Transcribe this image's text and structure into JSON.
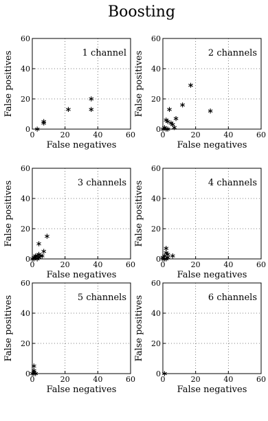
{
  "figure": {
    "title": "Boosting"
  },
  "chart_data": [
    {
      "type": "scatter",
      "label": "1 channel",
      "xlabel": "False negatives",
      "ylabel": "False positives",
      "xlim": [
        0,
        60
      ],
      "ylim": [
        0,
        60
      ],
      "xticks": [
        0,
        20,
        40,
        60
      ],
      "yticks": [
        0,
        20,
        40,
        60
      ],
      "grid": true,
      "points": [
        [
          3,
          0
        ],
        [
          7,
          4
        ],
        [
          7,
          5
        ],
        [
          22,
          13
        ],
        [
          36,
          13
        ],
        [
          36,
          20
        ]
      ]
    },
    {
      "type": "scatter",
      "label": "2 channels",
      "xlabel": "False negatives",
      "ylabel": "False positives",
      "xlim": [
        0,
        60
      ],
      "ylim": [
        0,
        60
      ],
      "xticks": [
        0,
        20,
        40,
        60
      ],
      "yticks": [
        0,
        20,
        40,
        60
      ],
      "grid": true,
      "points": [
        [
          0,
          0
        ],
        [
          1,
          1
        ],
        [
          2,
          0
        ],
        [
          3,
          0
        ],
        [
          2,
          6
        ],
        [
          3,
          5
        ],
        [
          4,
          13
        ],
        [
          5,
          4
        ],
        [
          6,
          3
        ],
        [
          7,
          1
        ],
        [
          8,
          7
        ],
        [
          12,
          16
        ],
        [
          17,
          29
        ],
        [
          29,
          12
        ]
      ]
    },
    {
      "type": "scatter",
      "label": "3 channels",
      "xlabel": "False negatives",
      "ylabel": "False positives",
      "xlim": [
        0,
        60
      ],
      "ylim": [
        0,
        60
      ],
      "xticks": [
        0,
        20,
        40,
        60
      ],
      "yticks": [
        0,
        20,
        40,
        60
      ],
      "grid": true,
      "points": [
        [
          0,
          0
        ],
        [
          1,
          0
        ],
        [
          1,
          1
        ],
        [
          2,
          1
        ],
        [
          2,
          2
        ],
        [
          3,
          0
        ],
        [
          3,
          2
        ],
        [
          4,
          3
        ],
        [
          4,
          1
        ],
        [
          5,
          2
        ],
        [
          4,
          10
        ],
        [
          6,
          2
        ],
        [
          7,
          5
        ],
        [
          9,
          15
        ]
      ]
    },
    {
      "type": "scatter",
      "label": "4 channels",
      "xlabel": "False negatives",
      "ylabel": "False positives",
      "xlim": [
        0,
        60
      ],
      "ylim": [
        0,
        60
      ],
      "xticks": [
        0,
        20,
        40,
        60
      ],
      "yticks": [
        0,
        20,
        40,
        60
      ],
      "grid": true,
      "points": [
        [
          0,
          0
        ],
        [
          0,
          1
        ],
        [
          1,
          0
        ],
        [
          1,
          2
        ],
        [
          2,
          0
        ],
        [
          2,
          4
        ],
        [
          2,
          7
        ],
        [
          3,
          1
        ],
        [
          3,
          3
        ],
        [
          6,
          2
        ]
      ]
    },
    {
      "type": "scatter",
      "label": "5 channels",
      "xlabel": "False negatives",
      "ylabel": "False positives",
      "xlim": [
        0,
        60
      ],
      "ylim": [
        0,
        60
      ],
      "xticks": [
        0,
        20,
        40,
        60
      ],
      "yticks": [
        0,
        20,
        40,
        60
      ],
      "grid": true,
      "points": [
        [
          0,
          0
        ],
        [
          1,
          0
        ],
        [
          1,
          1
        ],
        [
          1,
          2
        ],
        [
          1,
          5
        ],
        [
          2,
          0
        ]
      ]
    },
    {
      "type": "scatter",
      "label": "6 channels",
      "xlabel": "False negatives",
      "ylabel": "False positives",
      "xlim": [
        0,
        60
      ],
      "ylim": [
        0,
        60
      ],
      "xticks": [
        0,
        20,
        40,
        60
      ],
      "yticks": [
        0,
        20,
        40,
        60
      ],
      "grid": true,
      "points": [
        [
          1,
          0
        ]
      ]
    }
  ]
}
